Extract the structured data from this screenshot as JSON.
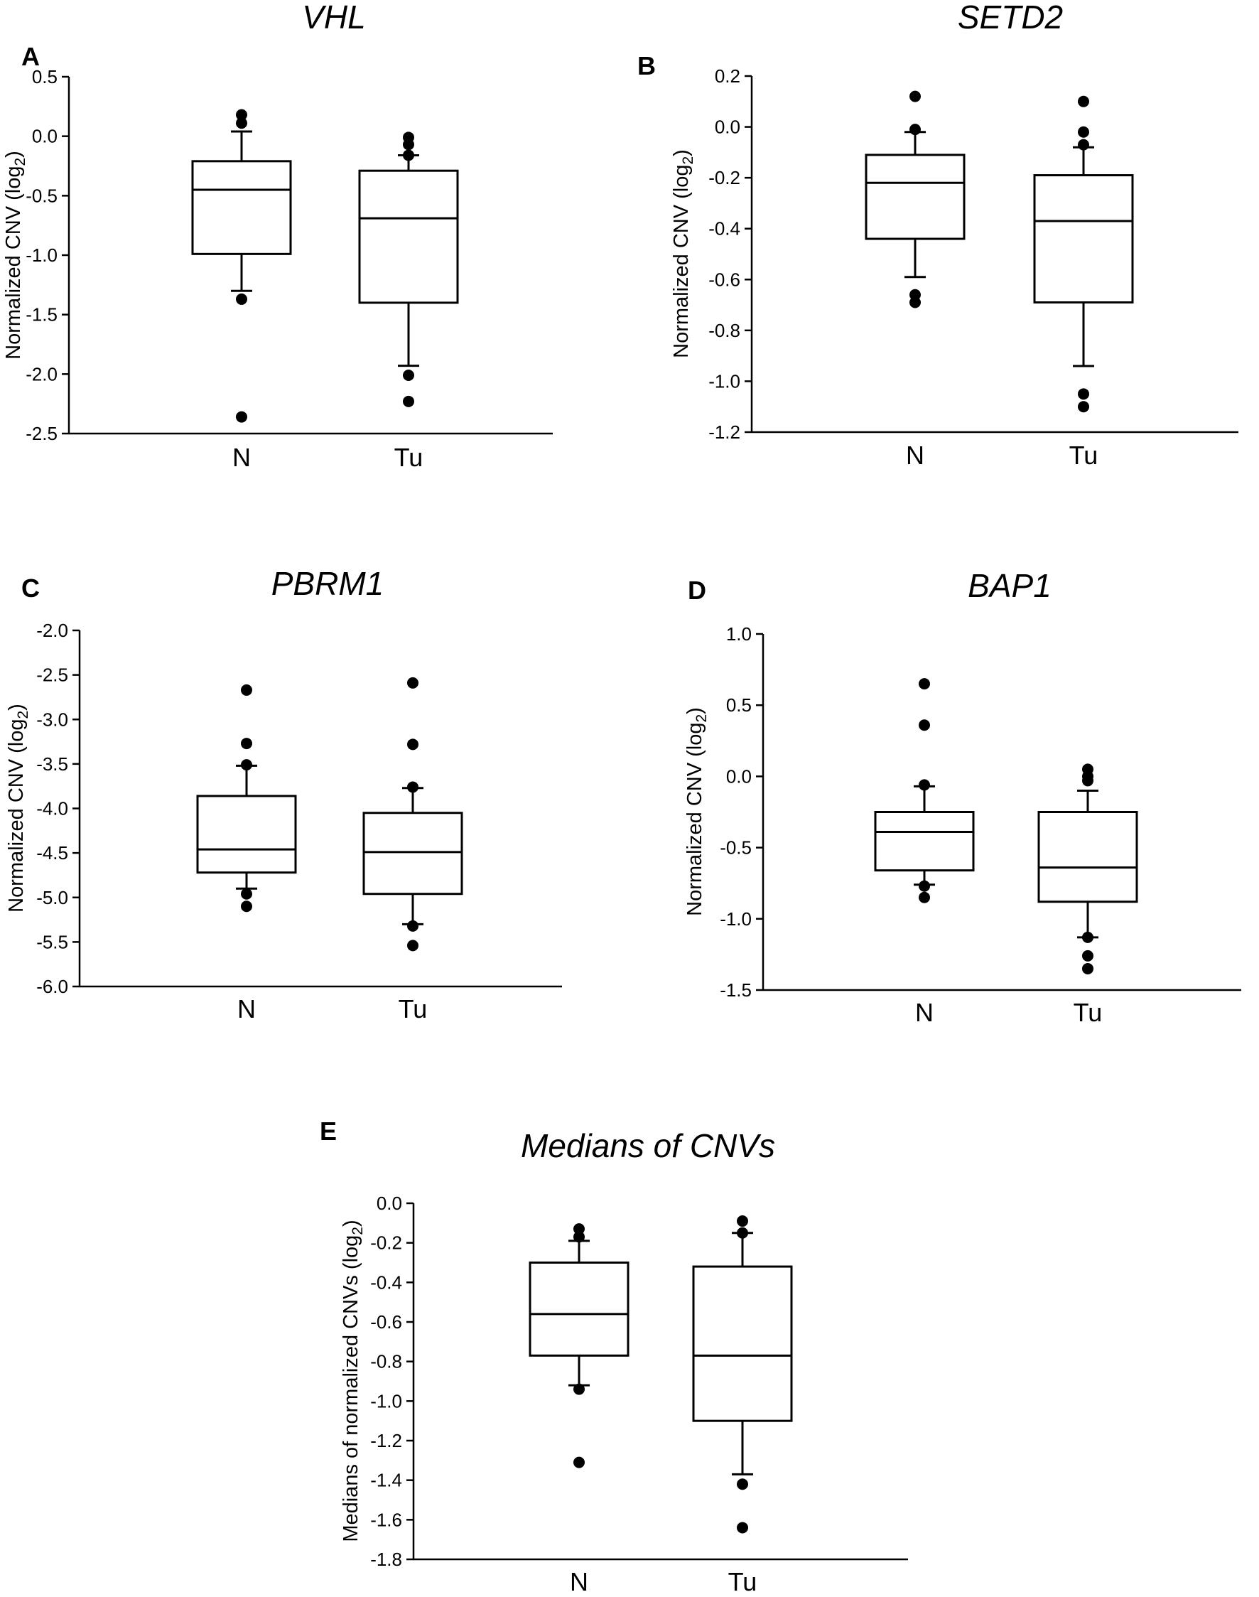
{
  "chart_data": [
    {
      "type": "box",
      "panel": "A",
      "title": "VHL",
      "ylabel_main": "Normalized CNV (log",
      "ylabel_sub": "2",
      "ylabel_end": ")",
      "ylim": [
        -2.5,
        0.5
      ],
      "yticks": [
        0.5,
        0.0,
        -0.5,
        -1.0,
        -1.5,
        -2.0,
        -2.5
      ],
      "ytick_labels": [
        "0.5",
        "0.0",
        "-0.5",
        "-1.0",
        "-1.5",
        "-2.0",
        "-2.5"
      ],
      "categories": [
        "N",
        "Tu"
      ],
      "boxes": [
        {
          "category": "N",
          "whisker_low": -1.3,
          "q1": -0.99,
          "median": -0.45,
          "q3": -0.21,
          "whisker_high": 0.04,
          "outliers": [
            0.18,
            0.11,
            -1.37,
            -2.36
          ]
        },
        {
          "category": "Tu",
          "whisker_low": -1.93,
          "q1": -1.4,
          "median": -0.69,
          "q3": -0.29,
          "whisker_high": -0.16,
          "outliers": [
            -0.01,
            -0.07,
            -0.16,
            -2.01,
            -2.23
          ]
        }
      ]
    },
    {
      "type": "box",
      "panel": "B",
      "title": "SETD2",
      "ylabel_main": "Normalized CNV (log",
      "ylabel_sub": "2",
      "ylabel_end": ")",
      "ylim": [
        -1.2,
        0.2
      ],
      "yticks": [
        0.2,
        0.0,
        -0.2,
        -0.4,
        -0.6,
        -0.8,
        -1.0,
        -1.2
      ],
      "ytick_labels": [
        "0.2",
        "0.0",
        "-0.2",
        "-0.4",
        "-0.6",
        "-0.8",
        "-1.0",
        "-1.2"
      ],
      "categories": [
        "N",
        "Tu"
      ],
      "boxes": [
        {
          "category": "N",
          "whisker_low": -0.59,
          "q1": -0.44,
          "median": -0.22,
          "q3": -0.11,
          "whisker_high": -0.02,
          "outliers": [
            0.12,
            -0.01,
            -0.66,
            -0.69
          ]
        },
        {
          "category": "Tu",
          "whisker_low": -0.94,
          "q1": -0.69,
          "median": -0.37,
          "q3": -0.19,
          "whisker_high": -0.08,
          "outliers": [
            0.1,
            -0.02,
            -0.07,
            -1.05,
            -1.1
          ]
        }
      ]
    },
    {
      "type": "box",
      "panel": "C",
      "title": "PBRM1",
      "ylabel_main": "Normalized CNV (log",
      "ylabel_sub": "2",
      "ylabel_end": ")",
      "ylim": [
        -6.0,
        -2.0
      ],
      "yticks": [
        -2.0,
        -2.5,
        -3.0,
        -3.5,
        -4.0,
        -4.5,
        -5.0,
        -5.5,
        -6.0
      ],
      "ytick_labels": [
        "-2.0",
        "-2.5",
        "-3.0",
        "-3.5",
        "-4.0",
        "-4.5",
        "-5.0",
        "-5.5",
        "-6.0"
      ],
      "categories": [
        "N",
        "Tu"
      ],
      "boxes": [
        {
          "category": "N",
          "whisker_low": -4.9,
          "q1": -4.72,
          "median": -4.46,
          "q3": -3.86,
          "whisker_high": -3.52,
          "outliers": [
            -2.67,
            -3.27,
            -3.51,
            -4.96,
            -5.1
          ]
        },
        {
          "category": "Tu",
          "whisker_low": -5.3,
          "q1": -4.96,
          "median": -4.49,
          "q3": -4.05,
          "whisker_high": -3.77,
          "outliers": [
            -2.59,
            -3.28,
            -3.76,
            -5.32,
            -5.54
          ]
        }
      ]
    },
    {
      "type": "box",
      "panel": "D",
      "title": "BAP1",
      "ylabel_main": "Normalized CNV (log",
      "ylabel_sub": "2",
      "ylabel_end": ")",
      "ylim": [
        -1.5,
        1.0
      ],
      "yticks": [
        1.0,
        0.5,
        0.0,
        -0.5,
        -1.0,
        -1.5
      ],
      "ytick_labels": [
        "1.0",
        "0.5",
        "0.0",
        "-0.5",
        "-1.0",
        "-1.5"
      ],
      "categories": [
        "N",
        "Tu"
      ],
      "boxes": [
        {
          "category": "N",
          "whisker_low": -0.76,
          "q1": -0.66,
          "median": -0.39,
          "q3": -0.25,
          "whisker_high": -0.07,
          "outliers": [
            0.65,
            0.36,
            -0.06,
            -0.77,
            -0.85
          ]
        },
        {
          "category": "Tu",
          "whisker_low": -1.13,
          "q1": -0.88,
          "median": -0.64,
          "q3": -0.25,
          "whisker_high": -0.1,
          "outliers": [
            0.05,
            0.0,
            -0.03,
            -1.13,
            -1.26,
            -1.35
          ]
        }
      ]
    },
    {
      "type": "box",
      "panel": "E",
      "title": "Medians of CNVs",
      "ylabel_main": "Medians of normalized CNVs (log",
      "ylabel_sub": "2",
      "ylabel_end": ")",
      "ylim": [
        -1.8,
        0.0
      ],
      "yticks": [
        0.0,
        -0.2,
        -0.4,
        -0.6,
        -0.8,
        -1.0,
        -1.2,
        -1.4,
        -1.6,
        -1.8
      ],
      "ytick_labels": [
        "0.0",
        "-0.2",
        "-0.4",
        "-0.6",
        "-0.8",
        "-1.0",
        "-1.2",
        "-1.4",
        "-1.6",
        "-1.8"
      ],
      "categories": [
        "N",
        "Tu"
      ],
      "boxes": [
        {
          "category": "N",
          "whisker_low": -0.92,
          "q1": -0.77,
          "median": -0.56,
          "q3": -0.3,
          "whisker_high": -0.19,
          "outliers": [
            -0.13,
            -0.17,
            -0.94,
            -1.31
          ]
        },
        {
          "category": "Tu",
          "whisker_low": -1.37,
          "q1": -1.1,
          "median": -0.77,
          "q3": -0.32,
          "whisker_high": -0.15,
          "outliers": [
            -0.09,
            -0.15,
            -1.42,
            -1.64
          ]
        }
      ]
    }
  ]
}
